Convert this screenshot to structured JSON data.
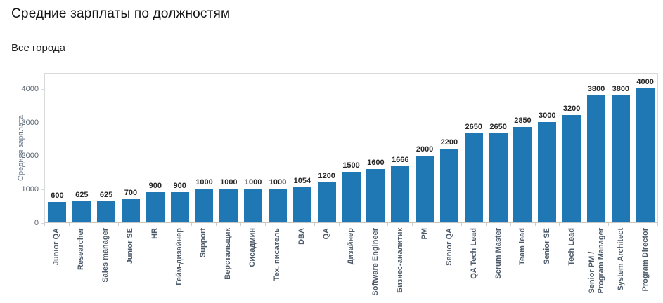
{
  "header": {
    "title": "Средние зарплаты по должностям",
    "subtitle": "Все города"
  },
  "colors": {
    "bar": "#1f77b4",
    "plot_border": "#d9d9d9",
    "tick": "#cfcfcf",
    "ytick_label": "#5b6570",
    "value_label": "#262626",
    "xtick_label": "#4e5b6a",
    "y_axis_title": "#6f7d8d"
  },
  "chart_data": {
    "type": "bar",
    "title": "Средние зарплаты по должностям",
    "subtitle": "Все города",
    "xlabel": "",
    "ylabel": "Средняя зарплата",
    "ylim": [
      0,
      4480
    ],
    "yticks": [
      0,
      1000,
      2000,
      3000,
      4000
    ],
    "grid": false,
    "legend": false,
    "bar_color": "#1f77b4",
    "categories": [
      "Junior QA",
      "Researcher",
      "Sales manager",
      "Junior SE",
      "HR",
      "Гейм-дизайнер",
      "Support",
      "Верстальщик",
      "Сисадмин",
      "Тех. писатель",
      "DBA",
      "QA",
      "Дизайнер",
      "Software Engineer",
      "Бизнес-аналитик",
      "PM",
      "Senior QA",
      "QA Tech Lead",
      "Scrum Master",
      "Team lead",
      "Senior SE",
      "Tech Lead",
      "Senior PM /\nProgram Manager",
      "System Architect",
      "Program Director"
    ],
    "values": [
      600,
      625,
      625,
      700,
      900,
      900,
      1000,
      1000,
      1000,
      1000,
      1054,
      1200,
      1500,
      1600,
      1666,
      2000,
      2200,
      2650,
      2650,
      2850,
      3000,
      3200,
      3800,
      3800,
      4000
    ]
  }
}
